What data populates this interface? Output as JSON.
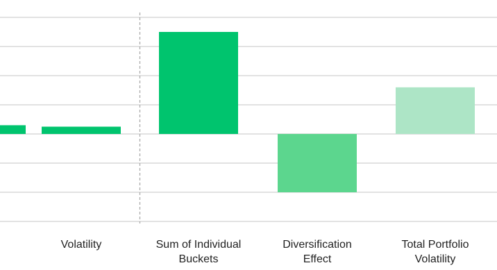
{
  "chart_data": {
    "type": "bar",
    "title": "",
    "xlabel": "",
    "ylabel": "",
    "ylim": [
      -3,
      4.5
    ],
    "grid": true,
    "legend": "none",
    "divider_after_category": 1,
    "categories": [
      {
        "key": "partial",
        "label_lines": []
      },
      {
        "key": "volatility",
        "label_lines": [
          "Volatility"
        ]
      },
      {
        "key": "sum-of-individual-buckets",
        "label_lines": [
          "Sum of Individual",
          "Buckets"
        ]
      },
      {
        "key": "diversification-effect",
        "label_lines": [
          "Diversification",
          "Effect"
        ]
      },
      {
        "key": "total-portfolio-volatility",
        "label_lines": [
          "Total Portfolio",
          "Volatility"
        ]
      }
    ],
    "values": [
      0.3,
      0.25,
      3.5,
      -2.0,
      1.6
    ],
    "colors": [
      "#00c46e",
      "#00c46e",
      "#00c46e",
      "#5cd68e",
      "#ade5c6"
    ]
  }
}
